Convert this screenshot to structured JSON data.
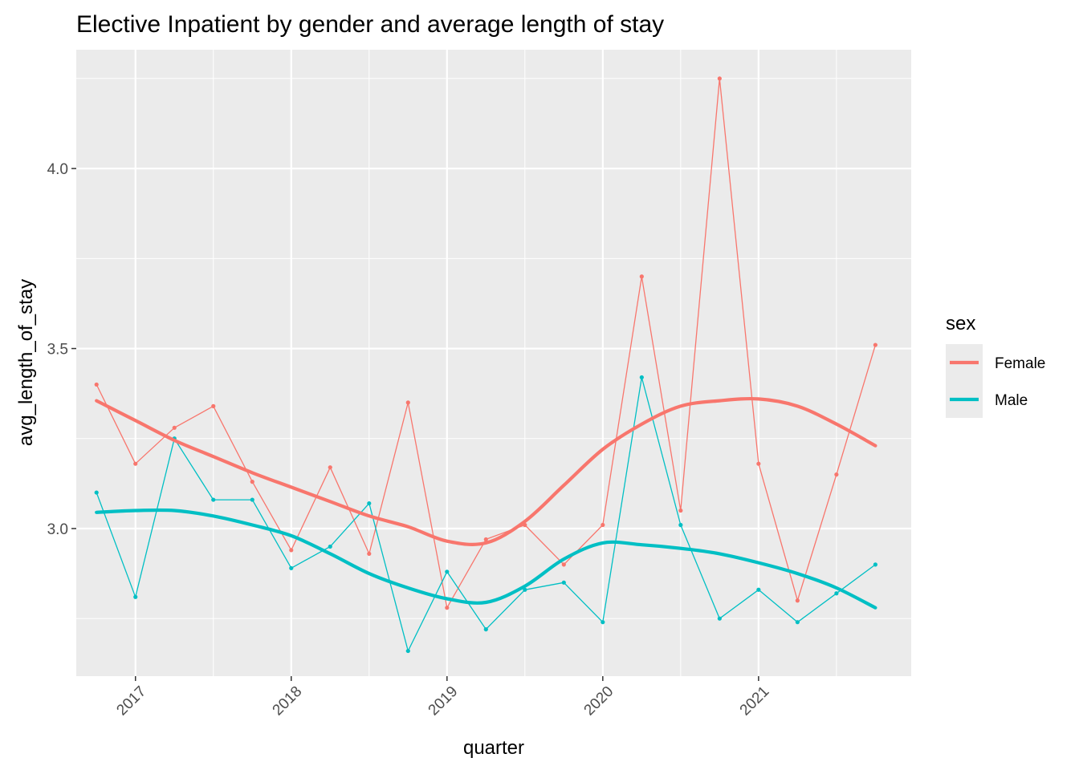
{
  "chart_data": {
    "type": "line",
    "title": "Elective Inpatient by gender and average length of stay",
    "xlabel": "quarter",
    "ylabel": "avg_length_of_stay",
    "x_range": [
      2016.62,
      2021.98
    ],
    "x_ticks": [
      2017,
      2018,
      2019,
      2020,
      2021
    ],
    "x_tick_labels": [
      "2017",
      "2018",
      "2019",
      "2020",
      "2021"
    ],
    "y_range": [
      2.59,
      4.33
    ],
    "y_ticks": [
      3.0,
      3.5,
      4.0
    ],
    "y_tick_labels": [
      "3.0",
      "3.5",
      "4.0"
    ],
    "grid": true,
    "legend": {
      "title": "sex",
      "position": "right"
    },
    "x": [
      2016.75,
      2017.0,
      2017.25,
      2017.5,
      2017.75,
      2018.0,
      2018.25,
      2018.5,
      2018.75,
      2019.0,
      2019.25,
      2019.5,
      2019.75,
      2020.0,
      2020.25,
      2020.5,
      2020.75,
      2021.0,
      2021.25,
      2021.5,
      2021.75
    ],
    "series": [
      {
        "name": "Female",
        "color": "#F8766D",
        "values": [
          3.4,
          3.18,
          3.28,
          3.34,
          3.13,
          2.94,
          3.17,
          2.93,
          3.35,
          2.78,
          2.97,
          3.01,
          2.9,
          3.01,
          3.7,
          3.05,
          4.25,
          3.18,
          2.8,
          3.15,
          3.51
        ],
        "smooth": [
          3.355,
          3.3,
          3.245,
          3.2,
          3.155,
          3.115,
          3.075,
          3.035,
          3.005,
          2.965,
          2.96,
          3.02,
          3.12,
          3.22,
          3.29,
          3.34,
          3.355,
          3.36,
          3.34,
          3.29,
          3.23
        ]
      },
      {
        "name": "Male",
        "color": "#00BFC4",
        "values": [
          3.1,
          2.81,
          3.25,
          3.08,
          3.08,
          2.89,
          2.95,
          3.07,
          2.66,
          2.88,
          2.72,
          2.83,
          2.85,
          2.74,
          3.42,
          3.01,
          2.75,
          2.83,
          2.74,
          2.82,
          2.9
        ],
        "smooth": [
          3.045,
          3.05,
          3.05,
          3.035,
          3.01,
          2.98,
          2.93,
          2.875,
          2.835,
          2.805,
          2.795,
          2.84,
          2.915,
          2.96,
          2.955,
          2.945,
          2.93,
          2.905,
          2.875,
          2.835,
          2.78
        ]
      }
    ]
  }
}
